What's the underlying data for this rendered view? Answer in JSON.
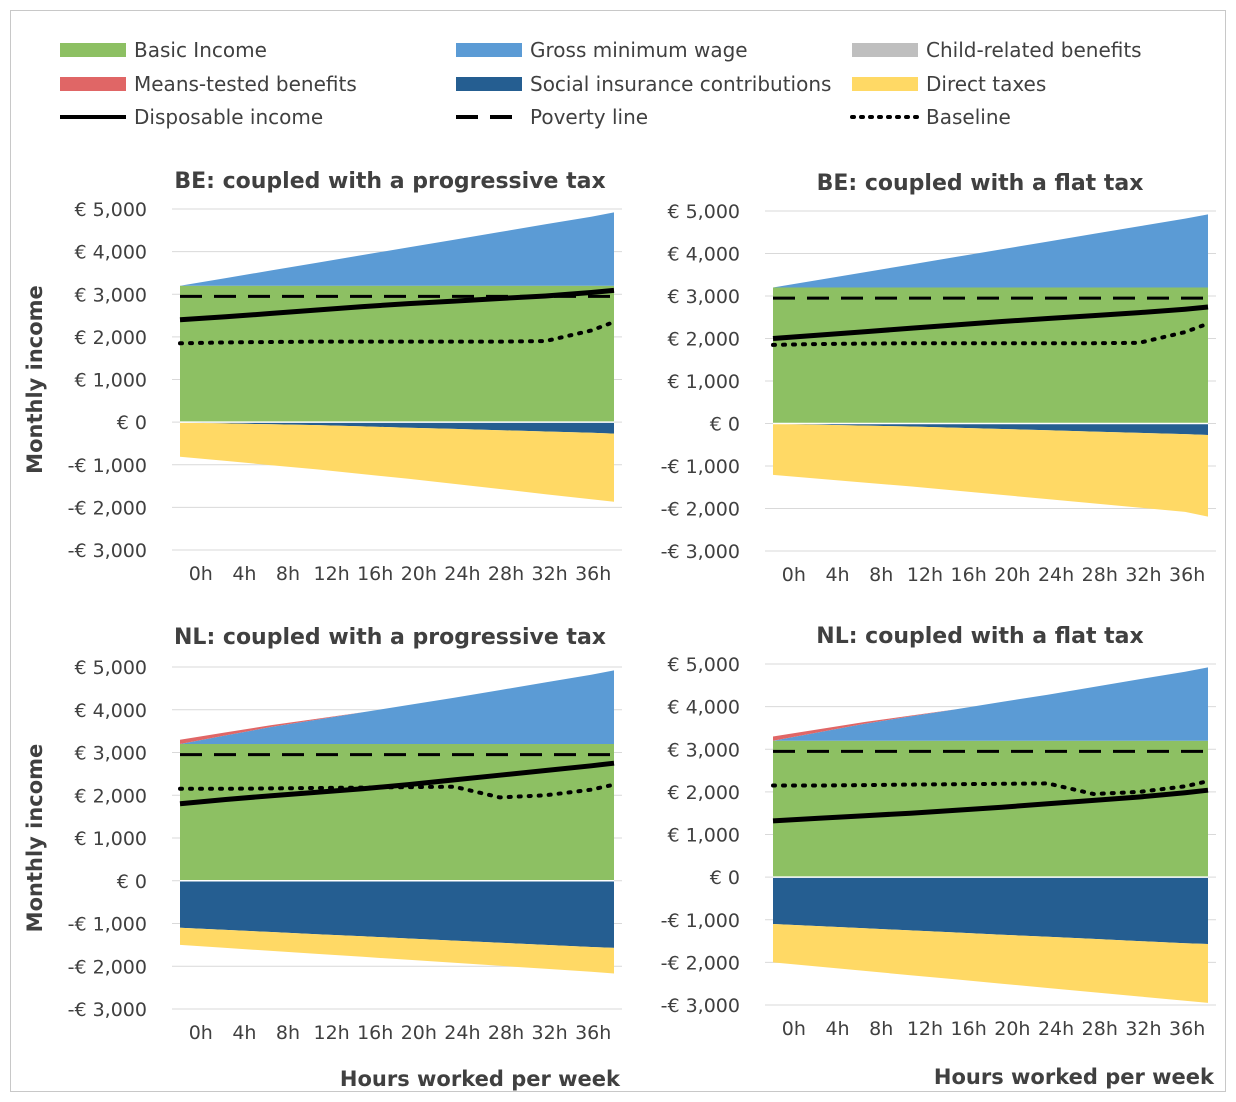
{
  "colors": {
    "basic_income": "#8DC063",
    "gross_minimum_wage": "#5B9BD5",
    "child_related_benefits": "#BFBFBF",
    "means_tested_benefits": "#E06666",
    "social_insurance_contributions": "#255E91",
    "direct_taxes": "#FFD965",
    "lines": "#000000"
  },
  "legend": [
    {
      "label": "Basic Income",
      "key": "basic_income",
      "kind": "fill"
    },
    {
      "label": "Gross minimum wage",
      "key": "gross_minimum_wage",
      "kind": "fill"
    },
    {
      "label": "Child-related benefits",
      "key": "child_related_benefits",
      "kind": "fill"
    },
    {
      "label": "Means-tested benefits",
      "key": "means_tested_benefits",
      "kind": "fill"
    },
    {
      "label": "Social insurance contributions",
      "key": "social_insurance_contributions",
      "kind": "fill"
    },
    {
      "label": "Direct taxes",
      "key": "direct_taxes",
      "kind": "fill"
    },
    {
      "label": "Disposable income",
      "key": "disposable_income",
      "kind": "solid"
    },
    {
      "label": "Poverty line",
      "key": "poverty_line",
      "kind": "dashed"
    },
    {
      "label": "Baseline",
      "key": "baseline",
      "kind": "dotted"
    }
  ],
  "chart_data": [
    {
      "type": "area",
      "title": "BE: coupled with a progressive tax",
      "ylabel": "Monthly income",
      "xlabel": "",
      "ylim": [
        -3000,
        5000
      ],
      "yticks": [
        5000,
        4000,
        3000,
        2000,
        1000,
        0,
        -1000,
        -2000,
        -3000
      ],
      "ytick_labels": [
        "€ 5,000",
        "€ 4,000",
        "€ 3,000",
        "€ 2,000",
        "€ 1,000",
        "€ 0",
        "-€ 1,000",
        "-€ 2,000",
        "-€ 3,000"
      ],
      "x": [
        0,
        4,
        8,
        12,
        16,
        20,
        24,
        28,
        32,
        36,
        38
      ],
      "x_tick_labels": [
        "0h",
        "4h",
        "8h",
        "12h",
        "16h",
        "20h",
        "24h",
        "28h",
        "32h",
        "36h"
      ],
      "series": {
        "basic_income": [
          3200,
          3200,
          3200,
          3200,
          3200,
          3200,
          3200,
          3200,
          3200,
          3200,
          3200
        ],
        "gross_minimum_wage": [
          0,
          180,
          360,
          540,
          720,
          900,
          1080,
          1260,
          1440,
          1620,
          1720
        ],
        "means_tested_benefits": [
          0,
          0,
          0,
          0,
          0,
          0,
          0,
          0,
          0,
          0,
          0
        ],
        "social_insurance_contributions": [
          -10,
          -30,
          -50,
          -70,
          -100,
          -130,
          -160,
          -190,
          -220,
          -250,
          -270
        ],
        "direct_taxes": [
          -800,
          -880,
          -960,
          -1040,
          -1120,
          -1200,
          -1290,
          -1380,
          -1470,
          -1560,
          -1600
        ],
        "disposable_income": [
          2400,
          2470,
          2550,
          2630,
          2710,
          2780,
          2840,
          2900,
          2960,
          3040,
          3090
        ],
        "poverty_line": [
          2950,
          2950,
          2950,
          2950,
          2950,
          2950,
          2950,
          2950,
          2950,
          2950,
          2950
        ],
        "baseline": [
          1850,
          1870,
          1880,
          1890,
          1890,
          1890,
          1890,
          1890,
          1900,
          2150,
          2350
        ]
      }
    },
    {
      "type": "area",
      "title": "BE: coupled with a flat tax",
      "ylabel": "",
      "xlabel": "",
      "ylim": [
        -3000,
        5000
      ],
      "yticks": [
        5000,
        4000,
        3000,
        2000,
        1000,
        0,
        -1000,
        -2000,
        -3000
      ],
      "ytick_labels": [
        "€ 5,000",
        "€ 4,000",
        "€ 3,000",
        "€ 2,000",
        "€ 1,000",
        "€ 0",
        "-€ 1,000",
        "-€ 2,000",
        "-€ 3,000"
      ],
      "x": [
        0,
        4,
        8,
        12,
        16,
        20,
        24,
        28,
        32,
        36,
        38
      ],
      "x_tick_labels": [
        "0h",
        "4h",
        "8h",
        "12h",
        "16h",
        "20h",
        "24h",
        "28h",
        "32h",
        "36h"
      ],
      "series": {
        "basic_income": [
          3200,
          3200,
          3200,
          3200,
          3200,
          3200,
          3200,
          3200,
          3200,
          3200,
          3200
        ],
        "gross_minimum_wage": [
          0,
          180,
          360,
          540,
          720,
          900,
          1080,
          1260,
          1440,
          1620,
          1720
        ],
        "means_tested_benefits": [
          0,
          0,
          0,
          0,
          0,
          0,
          0,
          0,
          0,
          0,
          0
        ],
        "social_insurance_contributions": [
          -10,
          -30,
          -50,
          -70,
          -100,
          -130,
          -160,
          -190,
          -220,
          -250,
          -270
        ],
        "direct_taxes": [
          -1200,
          -1270,
          -1340,
          -1410,
          -1480,
          -1550,
          -1620,
          -1690,
          -1760,
          -1830,
          -1920
        ],
        "disposable_income": [
          2000,
          2080,
          2160,
          2240,
          2320,
          2400,
          2470,
          2540,
          2610,
          2690,
          2740
        ],
        "poverty_line": [
          2950,
          2950,
          2950,
          2950,
          2950,
          2950,
          2950,
          2950,
          2950,
          2950,
          2950
        ],
        "baseline": [
          1850,
          1870,
          1880,
          1890,
          1890,
          1890,
          1890,
          1890,
          1900,
          2150,
          2350
        ]
      }
    },
    {
      "type": "area",
      "title": "NL: coupled with a progressive tax",
      "ylabel": "Monthly income",
      "xlabel": "Hours worked per week",
      "ylim": [
        -3000,
        5000
      ],
      "yticks": [
        5000,
        4000,
        3000,
        2000,
        1000,
        0,
        -1000,
        -2000,
        -3000
      ],
      "ytick_labels": [
        "€ 5,000",
        "€ 4,000",
        "€ 3,000",
        "€ 2,000",
        "€ 1,000",
        "€ 0",
        "-€ 1,000",
        "-€ 2,000",
        "-€ 3,000"
      ],
      "x": [
        0,
        4,
        8,
        12,
        16,
        20,
        24,
        28,
        32,
        36,
        38
      ],
      "x_tick_labels": [
        "0h",
        "4h",
        "8h",
        "12h",
        "16h",
        "20h",
        "24h",
        "28h",
        "32h",
        "36h"
      ],
      "series": {
        "basic_income": [
          3200,
          3200,
          3200,
          3200,
          3200,
          3200,
          3200,
          3200,
          3200,
          3200,
          3200
        ],
        "gross_minimum_wage": [
          0,
          200,
          400,
          570,
          740,
          910,
          1080,
          1260,
          1440,
          1620,
          1720
        ],
        "means_tested_benefits": [
          100,
          70,
          40,
          20,
          0,
          0,
          0,
          0,
          0,
          0,
          0
        ],
        "social_insurance_contributions": [
          -1100,
          -1150,
          -1200,
          -1250,
          -1300,
          -1350,
          -1400,
          -1450,
          -1500,
          -1550,
          -1570
        ],
        "direct_taxes": [
          -400,
          -420,
          -440,
          -460,
          -480,
          -500,
          -520,
          -540,
          -560,
          -580,
          -600
        ],
        "disposable_income": [
          1800,
          1900,
          1990,
          2070,
          2150,
          2250,
          2360,
          2470,
          2580,
          2690,
          2750
        ],
        "poverty_line": [
          2950,
          2950,
          2950,
          2950,
          2950,
          2950,
          2950,
          2950,
          2950,
          2950,
          2950
        ],
        "baseline": [
          2150,
          2150,
          2160,
          2170,
          2180,
          2190,
          2200,
          1950,
          2000,
          2130,
          2250
        ]
      }
    },
    {
      "type": "area",
      "title": "NL: coupled with a flat tax",
      "ylabel": "",
      "xlabel": "Hours worked per week",
      "ylim": [
        -3000,
        5000
      ],
      "yticks": [
        5000,
        4000,
        3000,
        2000,
        1000,
        0,
        -1000,
        -2000,
        -3000
      ],
      "ytick_labels": [
        "€ 5,000",
        "€ 4,000",
        "€ 3,000",
        "€ 2,000",
        "€ 1,000",
        "€ 0",
        "-€ 1,000",
        "-€ 2,000",
        "-€ 3,000"
      ],
      "x": [
        0,
        4,
        8,
        12,
        16,
        20,
        24,
        28,
        32,
        36,
        38
      ],
      "x_tick_labels": [
        "0h",
        "4h",
        "8h",
        "12h",
        "16h",
        "20h",
        "24h",
        "28h",
        "32h",
        "36h"
      ],
      "series": {
        "basic_income": [
          3200,
          3200,
          3200,
          3200,
          3200,
          3200,
          3200,
          3200,
          3200,
          3200,
          3200
        ],
        "gross_minimum_wage": [
          0,
          200,
          400,
          570,
          740,
          910,
          1080,
          1260,
          1440,
          1620,
          1720
        ],
        "means_tested_benefits": [
          100,
          70,
          40,
          20,
          0,
          0,
          0,
          0,
          0,
          0,
          0
        ],
        "social_insurance_contributions": [
          -1100,
          -1150,
          -1200,
          -1250,
          -1300,
          -1350,
          -1400,
          -1450,
          -1500,
          -1550,
          -1570
        ],
        "direct_taxes": [
          -900,
          -950,
          -1000,
          -1050,
          -1100,
          -1150,
          -1200,
          -1250,
          -1300,
          -1350,
          -1380
        ],
        "disposable_income": [
          1320,
          1380,
          1440,
          1500,
          1570,
          1640,
          1720,
          1800,
          1880,
          1980,
          2040
        ],
        "poverty_line": [
          2950,
          2950,
          2950,
          2950,
          2950,
          2950,
          2950,
          2950,
          2950,
          2950,
          2950
        ],
        "baseline": [
          2150,
          2150,
          2160,
          2170,
          2180,
          2190,
          2200,
          1950,
          2000,
          2130,
          2250
        ]
      }
    }
  ]
}
